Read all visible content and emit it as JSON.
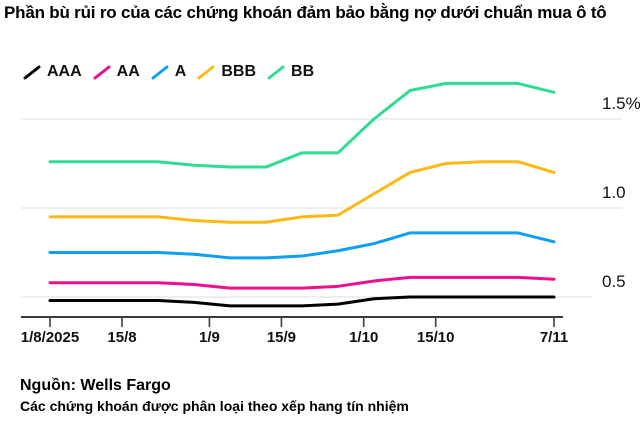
{
  "title": "Phần bù rủi ro của các chứng khoán đảm bảo bằng nợ dưới chuẩn mua ô tô",
  "legend": [
    {
      "label": "AAA",
      "color": "#000000"
    },
    {
      "label": "AA",
      "color": "#ee0f8c"
    },
    {
      "label": "A",
      "color": "#0d9ff2"
    },
    {
      "label": "BBB",
      "color": "#fdb813"
    },
    {
      "label": "BB",
      "color": "#2edd8f"
    }
  ],
  "chart_data": {
    "type": "line",
    "title": "Phần bù rủi ro của các chứng khoán đảm bảo bằng nợ dưới chuẩn mua ô tô",
    "unit": "%",
    "x_start_date": "1/8/2025",
    "x_end_date": "7/11",
    "point_day_offsets": [
      0,
      7,
      14,
      21,
      28,
      35,
      42,
      49,
      56,
      63,
      70,
      77,
      84,
      91,
      98
    ],
    "series": [
      {
        "name": "AAA",
        "color": "#000000",
        "values": [
          0.48,
          0.48,
          0.48,
          0.48,
          0.47,
          0.45,
          0.45,
          0.45,
          0.46,
          0.49,
          0.5,
          0.5,
          0.5,
          0.5,
          0.5
        ]
      },
      {
        "name": "AA",
        "color": "#ee0f8c",
        "values": [
          0.58,
          0.58,
          0.58,
          0.58,
          0.57,
          0.55,
          0.55,
          0.55,
          0.56,
          0.59,
          0.61,
          0.61,
          0.61,
          0.61,
          0.6
        ]
      },
      {
        "name": "A",
        "color": "#0d9ff2",
        "values": [
          0.75,
          0.75,
          0.75,
          0.75,
          0.74,
          0.72,
          0.72,
          0.73,
          0.76,
          0.8,
          0.86,
          0.86,
          0.86,
          0.86,
          0.81
        ]
      },
      {
        "name": "BBB",
        "color": "#fdb813",
        "values": [
          0.95,
          0.95,
          0.95,
          0.95,
          0.93,
          0.92,
          0.92,
          0.95,
          0.96,
          1.08,
          1.2,
          1.25,
          1.26,
          1.26,
          1.2
        ]
      },
      {
        "name": "BB",
        "color": "#2edd8f",
        "values": [
          1.26,
          1.26,
          1.26,
          1.26,
          1.24,
          1.23,
          1.23,
          1.31,
          1.31,
          1.5,
          1.66,
          1.7,
          1.7,
          1.7,
          1.65
        ]
      }
    ],
    "x_tick_labels": [
      "1/8/2025",
      "15/8",
      "1/9",
      "15/9",
      "1/10",
      "15/10",
      "7/11"
    ],
    "x_tick_day_offsets": [
      0,
      14,
      31,
      45,
      61,
      75,
      98
    ],
    "y_tick_labels": [
      "1.5%",
      "1.0",
      "0.5"
    ],
    "y_ticks": [
      1.5,
      1.0,
      0.5
    ],
    "ylim": [
      0.38,
      1.78
    ],
    "grid": true,
    "legend_position": "top-left"
  },
  "footer": {
    "source": "Nguồn: Wells Fargo",
    "note": "Các chứng khoán được phân loại theo xếp hang tín nhiệm"
  }
}
